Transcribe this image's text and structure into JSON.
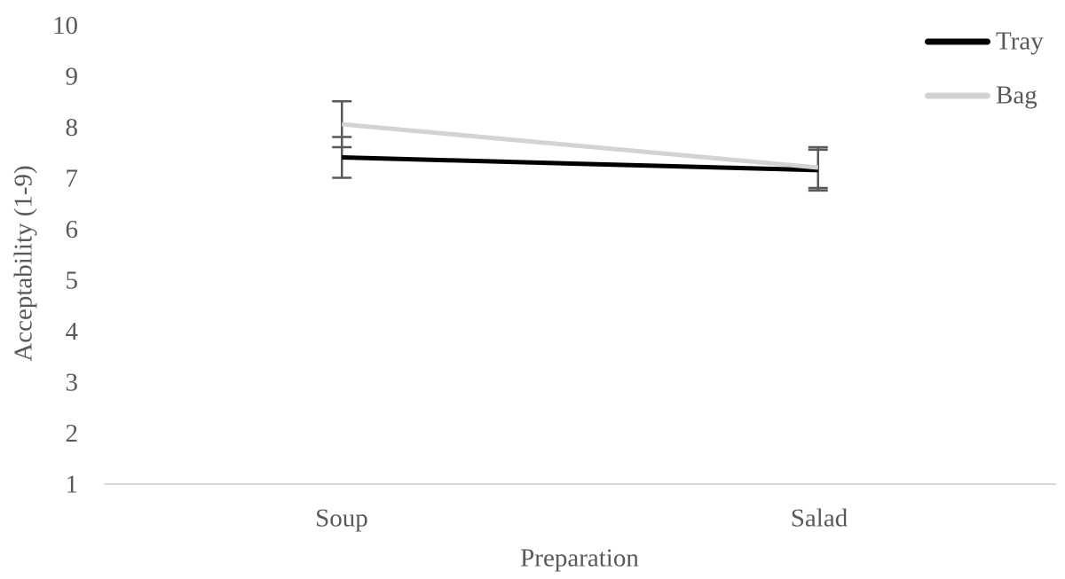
{
  "chart_data": {
    "type": "line",
    "title": "",
    "xlabel": "Preparation",
    "ylabel": "Acceptability (1-9)",
    "categories": [
      "Soup",
      "Salad"
    ],
    "series": [
      {
        "name": "Tray",
        "color": "#000000",
        "values": [
          7.4,
          7.15
        ],
        "error": [
          0.4,
          0.4
        ]
      },
      {
        "name": "Bag",
        "color": "#d3d3d3",
        "values": [
          8.05,
          7.2
        ],
        "error": [
          0.45,
          0.4
        ]
      }
    ],
    "ylim": [
      1,
      10
    ],
    "yticks": [
      10,
      9,
      8,
      7,
      6,
      5,
      4,
      3,
      2,
      1
    ],
    "grid": false,
    "legend_position": "top-right",
    "colors": {
      "text": "#595959",
      "axis_line": "#d9d9d9",
      "error_bar": "#595959"
    }
  }
}
